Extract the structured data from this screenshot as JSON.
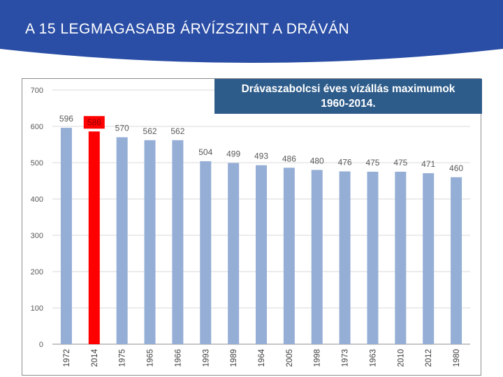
{
  "slide": {
    "title": "A 15 LEGMAGASABB ÁRVÍZSZINT A DRÁVÁN",
    "header_color": "#2a4ea5"
  },
  "chart_data": {
    "type": "bar",
    "title_line1": "Drávaszabolcsi éves vízállás maximumok",
    "title_line2": "1960-2014.",
    "categories": [
      "1972",
      "2014",
      "1975",
      "1965",
      "1966",
      "1993",
      "1989",
      "1964",
      "2005",
      "1998",
      "1973",
      "1963",
      "2010",
      "2012",
      "1980"
    ],
    "values": [
      596,
      586,
      570,
      562,
      562,
      504,
      499,
      493,
      486,
      480,
      476,
      475,
      475,
      471,
      460
    ],
    "highlight_index": 1,
    "bar_color": "#95aed6",
    "highlight_color": "#ff0000",
    "ylim": [
      0,
      700
    ],
    "yticks": [
      0,
      100,
      200,
      300,
      400,
      500,
      600,
      700
    ],
    "grid": true
  }
}
